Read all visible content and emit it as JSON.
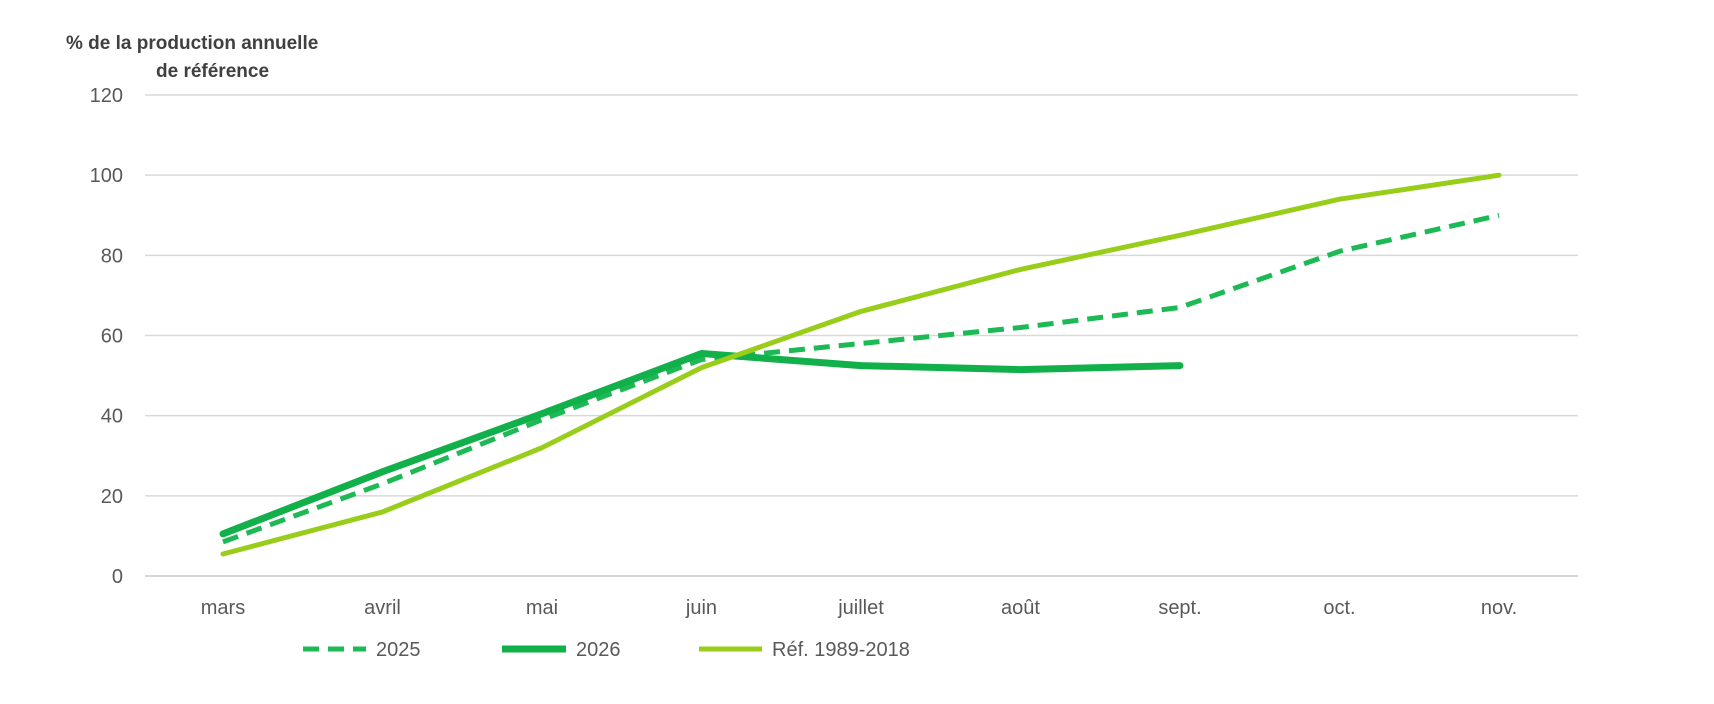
{
  "chart_data": {
    "type": "line",
    "title": "",
    "ylabel_lines": [
      "% de la production annuelle",
      "de référence"
    ],
    "xlabel": "",
    "categories": [
      "mars",
      "avril",
      "mai",
      "juin",
      "juillet",
      "août",
      "sept.",
      "oct.",
      "nov."
    ],
    "ylim": [
      0,
      120
    ],
    "yticks": [
      0,
      20,
      40,
      60,
      80,
      100,
      120
    ],
    "grid": true,
    "legend_position": "bottom",
    "series": [
      {
        "name": "2025",
        "style": "dashed",
        "color": "#1db954",
        "values": [
          8.5,
          23,
          39,
          54,
          58,
          62,
          67,
          81,
          90
        ]
      },
      {
        "name": "2026",
        "style": "solid-thick",
        "color": "#12b04a",
        "values": [
          10.5,
          26,
          40.5,
          55.5,
          52.5,
          51.5,
          52.5,
          null,
          null
        ]
      },
      {
        "name": "Réf. 1989-2018",
        "style": "solid",
        "color": "#98cd1a",
        "values": [
          5.5,
          16,
          32,
          52,
          66,
          76.5,
          85,
          94,
          100
        ]
      }
    ]
  }
}
